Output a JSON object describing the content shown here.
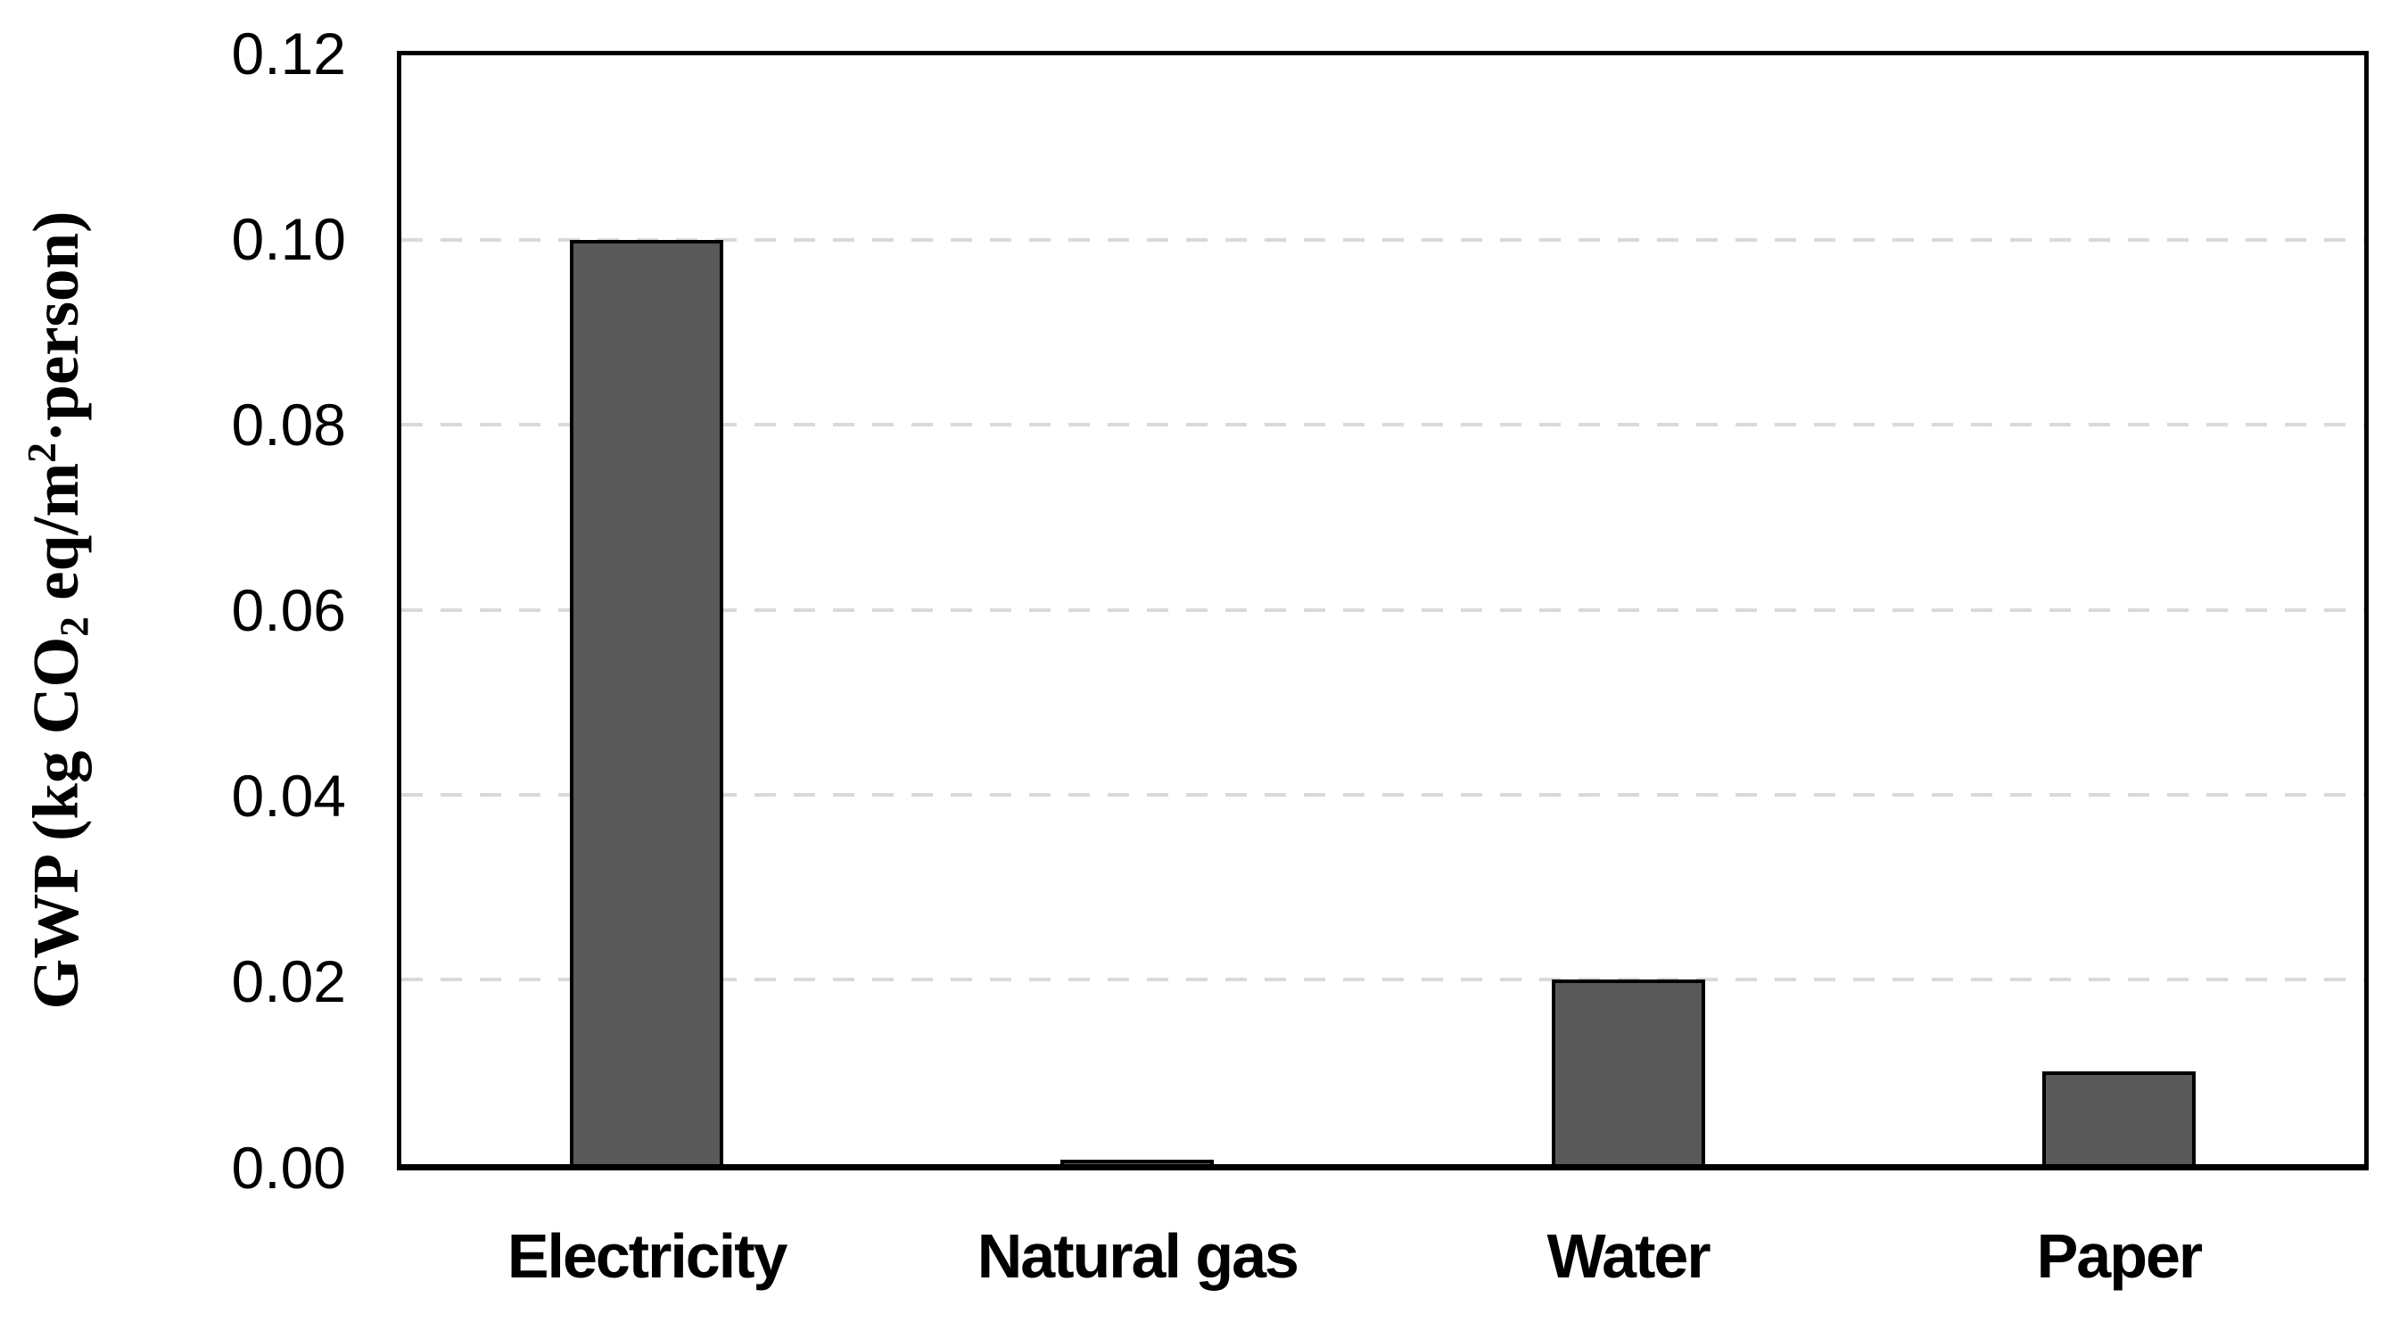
{
  "chart_data": {
    "type": "bar",
    "title": "",
    "categories": [
      "Electricity",
      "Natural gas",
      "Water",
      "Paper"
    ],
    "values": [
      0.1,
      0.0005,
      0.02,
      0.01
    ],
    "series_name": "GWP",
    "xlabel": "",
    "ylabel": "GWP (kg CO2 eq/m2·person)",
    "ylabel_parts": {
      "pre": "GWP (kg CO",
      "sub": "2",
      "mid": " eq/m",
      "sup": "2",
      "post": "·person)"
    },
    "y_tick_labels": [
      "0.00",
      "0.02",
      "0.04",
      "0.06",
      "0.08",
      "0.10",
      "0.12"
    ],
    "ylim": [
      0,
      0.12
    ],
    "y_tick_step": 0.02,
    "grid": "horizontal, dashed, light gray",
    "legend_position": "none",
    "colors": {
      "bar_fill": "#595959",
      "bar_border": "#000000",
      "gridline": "#d9d9d9",
      "axis_border": "#000000",
      "background": "#ffffff",
      "text": "#000000"
    }
  }
}
